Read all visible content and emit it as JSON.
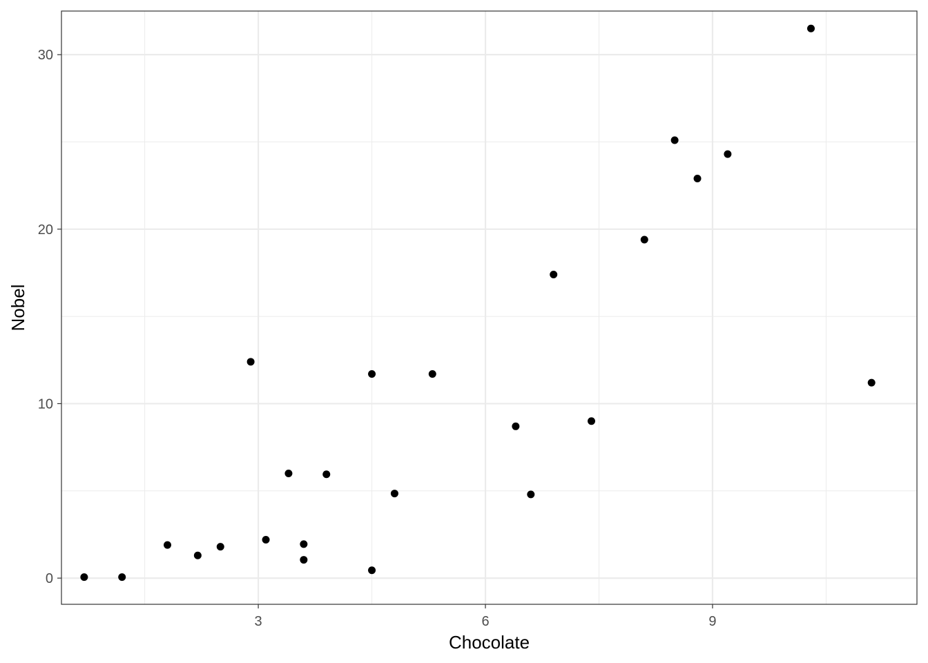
{
  "chart_data": {
    "type": "scatter",
    "title": "",
    "xlabel": "Chocolate",
    "ylabel": "Nobel",
    "xlim": [
      0.4,
      11.7
    ],
    "ylim": [
      -1.5,
      32.5
    ],
    "x_ticks": [
      3,
      6,
      9
    ],
    "x_tick_labels": [
      "3",
      "6",
      "9"
    ],
    "x_minor_ticks": [
      1.5,
      4.5,
      7.5,
      10.5
    ],
    "y_ticks": [
      0,
      10,
      20,
      30
    ],
    "y_tick_labels": [
      "0",
      "10",
      "20",
      "30"
    ],
    "y_minor_ticks": [
      5,
      15,
      25
    ],
    "grid": true,
    "legend": "none",
    "colors": {
      "point": "#000000",
      "grid": "#ebebeb",
      "panel_border": "#333333",
      "tick_text": "#4d4d4d"
    },
    "points": [
      {
        "x": 0.7,
        "y": 0.06
      },
      {
        "x": 1.2,
        "y": 0.06
      },
      {
        "x": 1.8,
        "y": 1.9
      },
      {
        "x": 2.2,
        "y": 1.3
      },
      {
        "x": 2.5,
        "y": 1.8
      },
      {
        "x": 2.9,
        "y": 12.4
      },
      {
        "x": 3.1,
        "y": 2.2
      },
      {
        "x": 3.4,
        "y": 6.0
      },
      {
        "x": 3.6,
        "y": 1.95
      },
      {
        "x": 3.6,
        "y": 1.05
      },
      {
        "x": 3.9,
        "y": 5.95
      },
      {
        "x": 4.5,
        "y": 11.7
      },
      {
        "x": 4.5,
        "y": 0.45
      },
      {
        "x": 4.8,
        "y": 4.85
      },
      {
        "x": 5.3,
        "y": 11.7
      },
      {
        "x": 6.4,
        "y": 8.7
      },
      {
        "x": 6.6,
        "y": 4.8
      },
      {
        "x": 6.9,
        "y": 17.4
      },
      {
        "x": 7.4,
        "y": 9.0
      },
      {
        "x": 8.1,
        "y": 19.4
      },
      {
        "x": 8.5,
        "y": 25.1
      },
      {
        "x": 8.8,
        "y": 22.9
      },
      {
        "x": 9.2,
        "y": 24.3
      },
      {
        "x": 10.3,
        "y": 31.5
      },
      {
        "x": 11.1,
        "y": 11.2
      }
    ]
  }
}
